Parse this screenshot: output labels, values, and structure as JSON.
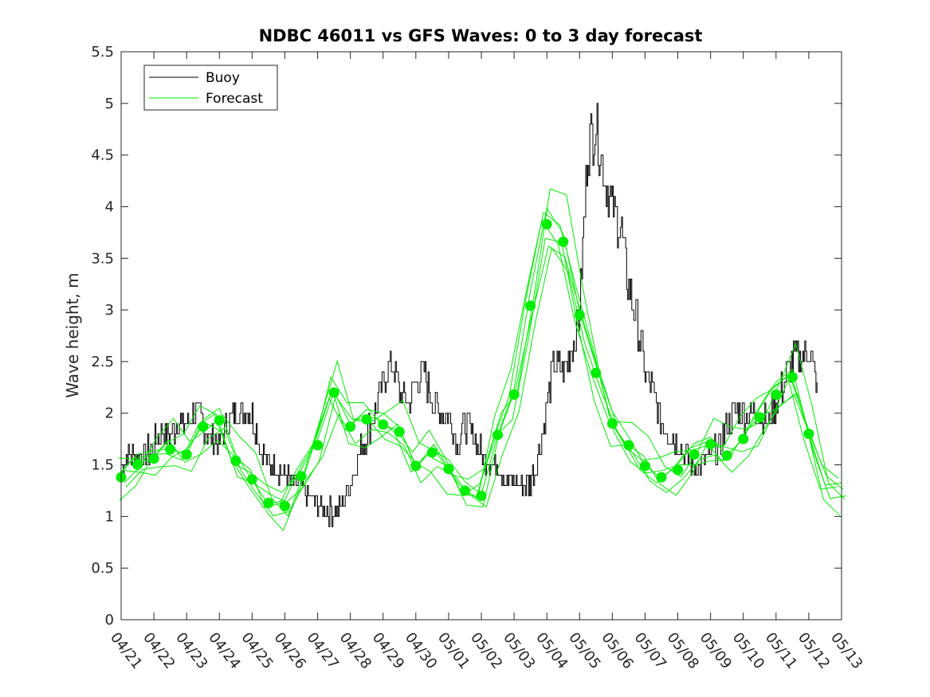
{
  "chart_data": {
    "type": "line",
    "title": "NDBC 46011 vs GFS Waves: 0 to 3 day forecast",
    "xlabel": "",
    "ylabel": "Wave height, m",
    "x_tick_labels": [
      "04/21",
      "04/22",
      "04/23",
      "04/24",
      "04/25",
      "04/26",
      "04/27",
      "04/28",
      "04/29",
      "04/30",
      "05/01",
      "05/02",
      "05/03",
      "05/04",
      "05/05",
      "05/06",
      "05/07",
      "05/08",
      "05/09",
      "05/10",
      "05/11",
      "05/12",
      "05/13"
    ],
    "y_ticks": [
      0,
      0.5,
      1,
      1.5,
      2,
      2.5,
      3,
      3.5,
      4,
      4.5,
      5,
      5.5
    ],
    "ylim": [
      0,
      5.5
    ],
    "x_range_days": [
      0,
      22
    ],
    "grid": false,
    "legend_position": "top-left",
    "colors": {
      "buoy": "#000000",
      "forecast": "#00ee00"
    },
    "series": [
      {
        "name": "Buoy",
        "x_days": [
          0,
          0.25,
          0.5,
          0.75,
          1,
          1.25,
          1.5,
          1.75,
          2,
          2.25,
          2.5,
          2.75,
          3,
          3.25,
          3.5,
          3.75,
          4,
          4.25,
          4.5,
          4.75,
          5,
          5.25,
          5.5,
          5.75,
          6,
          6.25,
          6.5,
          6.75,
          7,
          7.25,
          7.5,
          7.75,
          8,
          8.25,
          8.5,
          8.75,
          9,
          9.25,
          9.5,
          9.75,
          10,
          10.25,
          10.5,
          10.75,
          11,
          11.25,
          11.5,
          11.75,
          12,
          12.25,
          12.5,
          12.75,
          13,
          13.25,
          13.5,
          13.75,
          14,
          14.25,
          14.5,
          14.75,
          15,
          15.25,
          15.5,
          15.75,
          16,
          16.25,
          16.5,
          16.75,
          17,
          17.25,
          17.5,
          17.75,
          18,
          18.25,
          18.5,
          18.75,
          19,
          19.25,
          19.5,
          19.75,
          20,
          20.25,
          20.5,
          20.75,
          21,
          21.25
        ],
        "values": [
          1.5,
          1.6,
          1.55,
          1.6,
          1.7,
          1.8,
          1.8,
          1.9,
          1.9,
          2.0,
          1.9,
          1.75,
          1.7,
          1.9,
          2.0,
          2.05,
          2.0,
          1.65,
          1.5,
          1.5,
          1.4,
          1.3,
          1.3,
          1.2,
          1.1,
          1.05,
          1.05,
          1.1,
          1.35,
          1.6,
          1.8,
          2.0,
          2.3,
          2.5,
          2.2,
          2.1,
          2.3,
          2.4,
          2.1,
          2.0,
          2.0,
          1.7,
          1.9,
          1.8,
          1.6,
          1.55,
          1.5,
          1.35,
          1.35,
          1.25,
          1.35,
          1.6,
          2.1,
          2.5,
          2.4,
          2.6,
          3.0,
          4.6,
          4.8,
          4.3,
          4.0,
          3.8,
          3.2,
          2.9,
          2.4,
          2.2,
          1.9,
          1.8,
          1.7,
          1.6,
          1.5,
          1.5,
          1.6,
          1.65,
          1.9,
          2.0,
          2.0,
          2.0,
          2.0,
          1.9,
          2.1,
          2.3,
          2.5,
          2.55,
          2.6,
          2.3
        ]
      },
      {
        "name": "Forecast",
        "x_days": [
          0,
          0.5,
          1,
          1.5,
          2,
          2.5,
          3,
          3.5,
          4,
          4.5,
          5,
          5.5,
          6,
          6.5,
          7,
          7.5,
          8,
          8.5,
          9,
          9.5,
          10,
          10.5,
          11,
          11.5,
          12,
          12.5,
          13,
          13.5,
          14,
          14.5,
          15,
          15.5,
          16,
          16.5,
          17,
          17.5,
          18,
          18.5,
          19,
          19.5,
          20,
          20.5,
          21,
          21.5,
          22
        ],
        "values": [
          1.38,
          1.5,
          1.56,
          1.65,
          1.6,
          1.87,
          1.93,
          1.54,
          1.36,
          1.13,
          1.1,
          1.39,
          1.69,
          2.2,
          1.87,
          1.94,
          1.89,
          1.82,
          1.49,
          1.62,
          1.46,
          1.25,
          1.2,
          1.79,
          2.18,
          3.04,
          3.83,
          3.66,
          2.95,
          2.39,
          1.9,
          1.69,
          1.49,
          1.38,
          1.45,
          1.6,
          1.7,
          1.59,
          1.75,
          1.96,
          2.18,
          2.35,
          1.8,
          1.3,
          1.25
        ]
      }
    ]
  }
}
